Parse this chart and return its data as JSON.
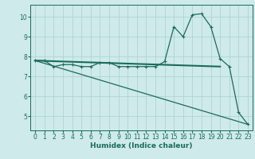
{
  "xlabel": "Humidex (Indice chaleur)",
  "ylabel": "",
  "bg_color": "#ceeaea",
  "line_color": "#1a6b5a",
  "grid_color": "#aacfcf",
  "line1_x": [
    0,
    1,
    2,
    3,
    4,
    5,
    6,
    7,
    8,
    9,
    10,
    11,
    12,
    13,
    14,
    15,
    16,
    17,
    18,
    19,
    20,
    21,
    22,
    23
  ],
  "line1_y": [
    7.8,
    7.8,
    7.5,
    7.6,
    7.6,
    7.5,
    7.5,
    7.7,
    7.7,
    7.5,
    7.5,
    7.5,
    7.5,
    7.5,
    7.75,
    9.5,
    9.0,
    10.1,
    10.15,
    9.5,
    7.9,
    7.5,
    5.2,
    4.6
  ],
  "line2_x": [
    0,
    20
  ],
  "line2_y": [
    7.8,
    7.5
  ],
  "line3_x": [
    0,
    23
  ],
  "line3_y": [
    7.8,
    4.6
  ],
  "xlim": [
    -0.5,
    23.5
  ],
  "ylim": [
    4.3,
    10.6
  ],
  "yticks": [
    5,
    6,
    7,
    8,
    9,
    10
  ],
  "xticks": [
    0,
    1,
    2,
    3,
    4,
    5,
    6,
    7,
    8,
    9,
    10,
    11,
    12,
    13,
    14,
    15,
    16,
    17,
    18,
    19,
    20,
    21,
    22,
    23
  ],
  "tick_fontsize": 5.5,
  "xlabel_fontsize": 6.5,
  "marker_size": 3,
  "linewidth": 0.9,
  "thick_linewidth": 1.5
}
